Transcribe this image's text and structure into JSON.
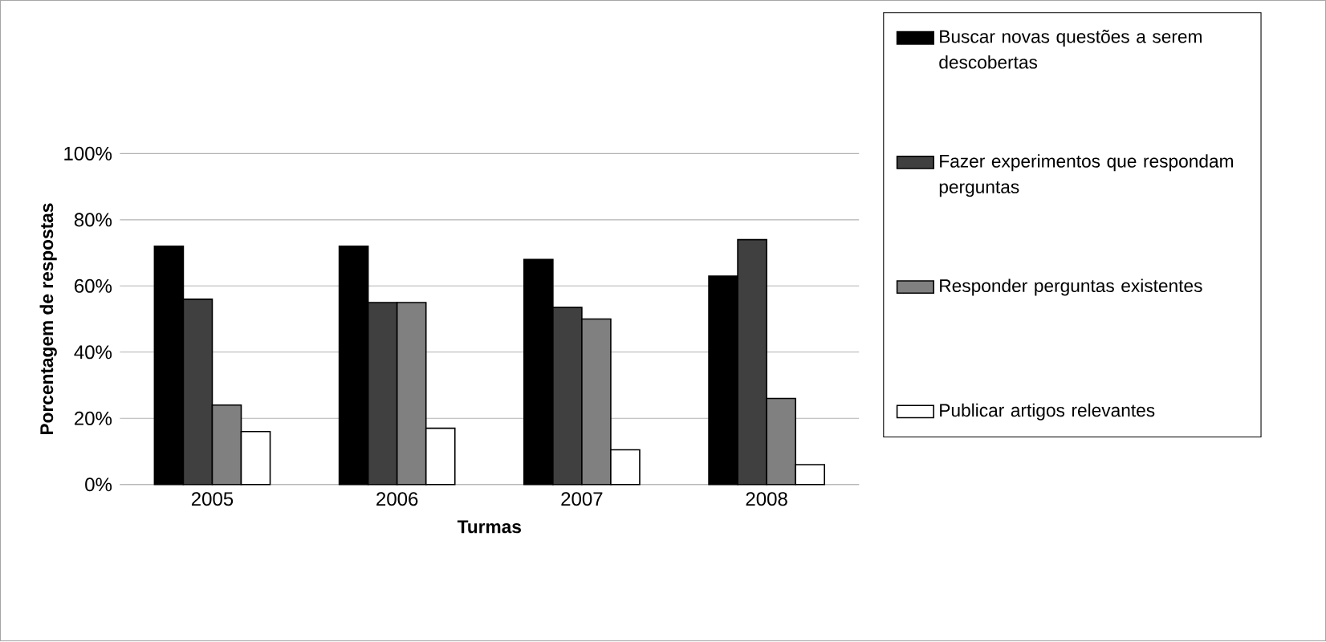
{
  "chart_data": {
    "type": "bar",
    "xlabel": "Turmas",
    "ylabel": "Porcentagem de respostas",
    "categories": [
      "2005",
      "2006",
      "2007",
      "2008"
    ],
    "series": [
      {
        "name": "Buscar novas questões a serem descobertas",
        "color": "#000000",
        "values": [
          72,
          72,
          68,
          63
        ]
      },
      {
        "name": "Fazer experimentos que respondam perguntas",
        "color": "#404040",
        "values": [
          56,
          55,
          53.5,
          74
        ]
      },
      {
        "name": "Responder perguntas existentes",
        "color": "#808080",
        "values": [
          24,
          55,
          50,
          26
        ]
      },
      {
        "name": "Publicar artigos relevantes",
        "color": "#ffffff",
        "values": [
          16,
          17,
          10.5,
          6
        ]
      }
    ],
    "ylim": [
      0,
      100
    ],
    "yticks": [
      {
        "value": 0,
        "label": "0%"
      },
      {
        "value": 20,
        "label": "20%"
      },
      {
        "value": 40,
        "label": "40%"
      },
      {
        "value": 60,
        "label": "60%"
      },
      {
        "value": 80,
        "label": "80%"
      },
      {
        "value": 100,
        "label": "100%"
      }
    ],
    "grid": "y",
    "legend": "right"
  }
}
